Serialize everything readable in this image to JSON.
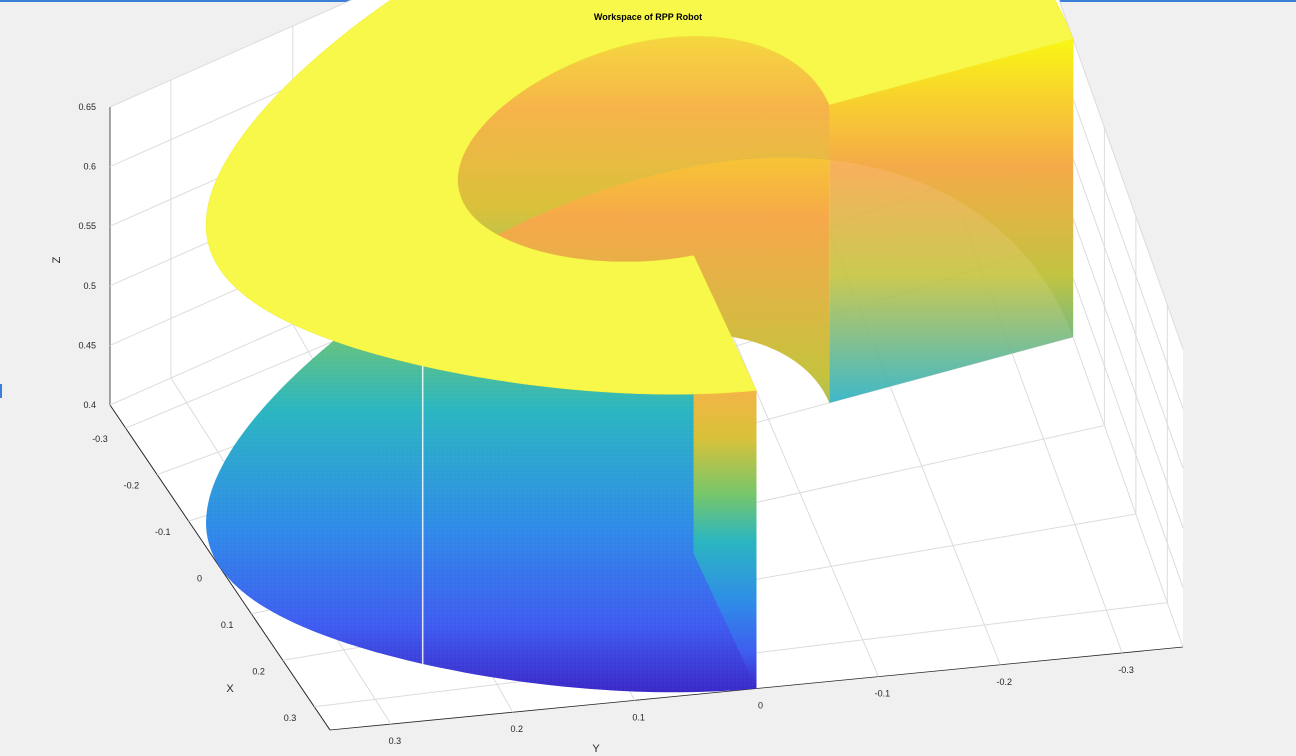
{
  "chart_data": {
    "type": "scatter",
    "title": "Workspace of RPP Robot",
    "xlabel": "X",
    "ylabel": "Y",
    "zlabel": "Z",
    "x_ticks": [
      0.3,
      0.2,
      0.1,
      0,
      -0.1,
      -0.2,
      -0.3
    ],
    "x_tick_labels": [
      "0.3",
      "0.2",
      "0.1",
      "0",
      "-0.1",
      "-0.2",
      "-0.3"
    ],
    "y_ticks": [
      0.3,
      0.2,
      0.1,
      0,
      -0.1,
      -0.2,
      -0.3
    ],
    "y_tick_labels": [
      "0.3",
      "0.2",
      "0.1",
      "0",
      "-0.1",
      "-0.2",
      "-0.3"
    ],
    "z_ticks": [
      0.65,
      0.6,
      0.55,
      0.5,
      0.45,
      0.4
    ],
    "z_tick_labels": [
      "0.65",
      "0.6",
      "0.55",
      "0.5",
      "0.45",
      "0.4"
    ],
    "xlim": [
      -0.35,
      0.35
    ],
    "ylim": [
      -0.35,
      0.35
    ],
    "zlim": [
      0.4,
      0.65
    ],
    "grid": true,
    "colormap": "parula",
    "series": [
      {
        "shape": "cylindrical shell sector",
        "inner_radius": 0.15,
        "outer_radius": 0.35,
        "theta_deg": [
          0,
          270
        ],
        "z": [
          0.4,
          0.65
        ]
      }
    ]
  }
}
